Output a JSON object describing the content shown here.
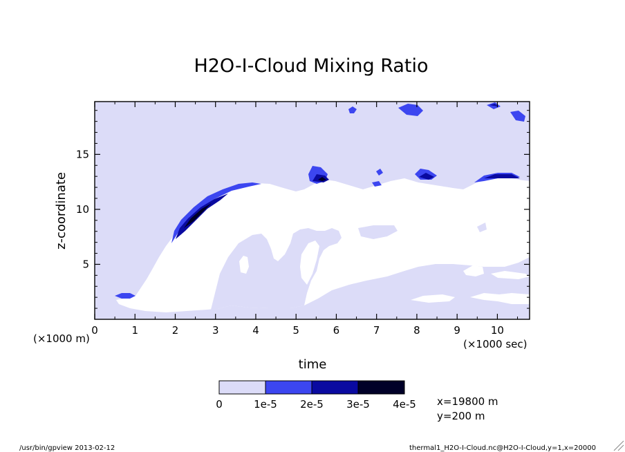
{
  "chart_data": {
    "type": "contour",
    "title": "H2O-I-Cloud Mixing Ratio",
    "xlabel": "time",
    "ylabel": "z-coordinate",
    "x_scale_label": "(×1000 sec)",
    "y_scale_label": "(×1000 m)",
    "xlim": [
      0,
      10.8
    ],
    "ylim": [
      0,
      19.8
    ],
    "x_ticks": [
      0,
      1,
      2,
      3,
      4,
      5,
      6,
      7,
      8,
      9,
      10
    ],
    "y_ticks": [
      5,
      10,
      15
    ],
    "levels": [
      "0",
      "1e-5",
      "2e-5",
      "3e-5",
      "4e-5"
    ],
    "level_colors": [
      "#dcdcf8",
      "#3c46f0",
      "#0a0aa0",
      "#000028"
    ],
    "background_color": "#ffffff",
    "info": [
      "x=19800 m",
      "y=200 m"
    ]
  },
  "footer": {
    "left": "/usr/bin/gpview  2013-02-12",
    "right": "thermal1_H2O-I-Cloud.nc@H2O-I-Cloud,y=1,x=20000"
  }
}
